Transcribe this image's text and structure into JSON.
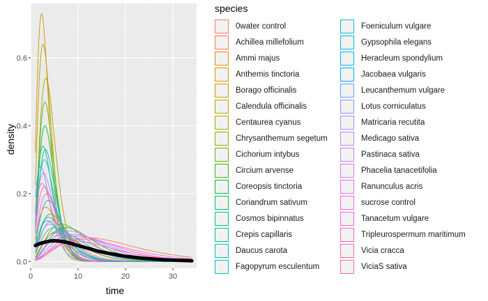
{
  "chart_data": {
    "type": "line",
    "subtype": "density",
    "xlabel": "time",
    "ylabel": "density",
    "xlim": [
      0,
      35
    ],
    "ylim": [
      -0.02,
      0.76
    ],
    "x_ticks": [
      "0",
      "10",
      "20",
      "30"
    ],
    "x_tick_values": [
      0,
      10,
      20,
      30
    ],
    "y_ticks": [
      "0.0",
      "0.2",
      "0.4",
      "0.6"
    ],
    "y_tick_values": [
      0,
      0.2,
      0.4,
      0.6
    ],
    "grid": true,
    "panel_background": "#ebebeb",
    "legend": {
      "title": "species",
      "position": "right",
      "columns": 2,
      "entries": [
        {
          "name": "0water control",
          "color": "#F8766D"
        },
        {
          "name": "Achillea millefolium",
          "color": "#F07F4F"
        },
        {
          "name": "Ammi majus",
          "color": "#E58700"
        },
        {
          "name": "Anthemis tinctoria",
          "color": "#D89000"
        },
        {
          "name": "Borago officinalis",
          "color": "#C99800"
        },
        {
          "name": "Calendula officinalis",
          "color": "#B79F00"
        },
        {
          "name": "Centaurea cyanus",
          "color": "#A3A500"
        },
        {
          "name": "Chrysanthemum segetum",
          "color": "#8BAB00"
        },
        {
          "name": "Cichorium intybus",
          "color": "#6BB100"
        },
        {
          "name": "Circium arvense",
          "color": "#39B600"
        },
        {
          "name": "Coreopsis tinctoria",
          "color": "#00BA38"
        },
        {
          "name": "Coriandrum sativum",
          "color": "#00BD5C"
        },
        {
          "name": "Cosmos bipinnatus",
          "color": "#00BF7D"
        },
        {
          "name": "Crepis capillaris",
          "color": "#00C19A"
        },
        {
          "name": "Daucus carota",
          "color": "#00C1B2"
        },
        {
          "name": "Fagopyrum esculentum",
          "color": "#00BFC4"
        },
        {
          "name": "Foeniculum vulgare",
          "color": "#00BBD9"
        },
        {
          "name": "Gypsophila elegans",
          "color": "#00B5E8"
        },
        {
          "name": "Heracleum spondylium",
          "color": "#00ADF4"
        },
        {
          "name": "Jacobaea vulgaris",
          "color": "#00A5FF"
        },
        {
          "name": "Leucanthemum vulgare",
          "color": "#619CFF"
        },
        {
          "name": "Lotus corniculatus",
          "color": "#8B93FF"
        },
        {
          "name": "Matricaria recutita",
          "color": "#A58AFF"
        },
        {
          "name": "Medicago sativa",
          "color": "#BA81FF"
        },
        {
          "name": "Pastinaca sativa",
          "color": "#C77CFF"
        },
        {
          "name": "Phacelia tanacetifolia",
          "color": "#D877F2"
        },
        {
          "name": "Ranunculus acris",
          "color": "#E76BF3"
        },
        {
          "name": "sucrose control",
          "color": "#F365E6"
        },
        {
          "name": "Tanacetum vulgare",
          "color": "#FB61D7"
        },
        {
          "name": "Tripleurospermum maritimum",
          "color": "#FF62BC"
        },
        {
          "name": "Vicia cracca",
          "color": "#FF65AE"
        },
        {
          "name": "ViciaS sativa",
          "color": "#FF6C91"
        }
      ]
    },
    "series": [
      {
        "color": "#C99800",
        "peak_x": 2.3,
        "peak_y": 0.73,
        "spread": 0.8
      },
      {
        "color": "#B79F00",
        "peak_x": 2.6,
        "peak_y": 0.64,
        "spread": 0.9
      },
      {
        "color": "#A3A500",
        "peak_x": 3.2,
        "peak_y": 0.54,
        "spread": 1.0
      },
      {
        "color": "#6BB100",
        "peak_x": 3.0,
        "peak_y": 0.47,
        "spread": 0.9
      },
      {
        "color": "#00BA38",
        "peak_x": 3.0,
        "peak_y": 0.4,
        "spread": 1.0
      },
      {
        "color": "#00BF7D",
        "peak_x": 2.6,
        "peak_y": 0.34,
        "spread": 1.1
      },
      {
        "color": "#00C19A",
        "peak_x": 3.1,
        "peak_y": 0.33,
        "spread": 1.1
      },
      {
        "color": "#00BFC4",
        "peak_x": 2.9,
        "peak_y": 0.3,
        "spread": 1.2
      },
      {
        "color": "#619CFF",
        "peak_x": 2.1,
        "peak_y": 0.28,
        "spread": 1.3
      },
      {
        "color": "#C77CFF",
        "peak_x": 2.7,
        "peak_y": 0.26,
        "spread": 1.4
      },
      {
        "color": "#F8766D",
        "peak_x": 2.4,
        "peak_y": 0.23,
        "spread": 1.5
      },
      {
        "color": "#F365E6",
        "peak_x": 2.9,
        "peak_y": 0.22,
        "spread": 1.5
      },
      {
        "color": "#FF62BC",
        "peak_x": 3.4,
        "peak_y": 0.2,
        "spread": 1.7
      },
      {
        "color": "#00A5FF",
        "peak_x": 3.7,
        "peak_y": 0.18,
        "spread": 1.8
      },
      {
        "color": "#E58700",
        "peak_x": 3.2,
        "peak_y": 0.16,
        "spread": 1.9
      },
      {
        "color": "#39B600",
        "peak_x": 4.2,
        "peak_y": 0.14,
        "spread": 2.0
      },
      {
        "color": "#00ADF4",
        "peak_x": 3.8,
        "peak_y": 0.13,
        "spread": 2.2
      },
      {
        "color": "#FF6C91",
        "peak_x": 4.5,
        "peak_y": 0.12,
        "spread": 2.3
      },
      {
        "color": "#8BAB00",
        "peak_x": 6.5,
        "peak_y": 0.11,
        "spread": 3.0
      },
      {
        "color": "#00BD5C",
        "peak_x": 7.5,
        "peak_y": 0.1,
        "spread": 3.2
      },
      {
        "color": "#00C1B2",
        "peak_x": 5.0,
        "peak_y": 0.1,
        "spread": 3.0
      },
      {
        "color": "#D877F2",
        "peak_x": 8.0,
        "peak_y": 0.09,
        "spread": 3.8
      },
      {
        "color": "#A58AFF",
        "peak_x": 9.0,
        "peak_y": 0.08,
        "spread": 4.2
      },
      {
        "color": "#FB61D7",
        "peak_x": 10.0,
        "peak_y": 0.075,
        "spread": 4.5
      },
      {
        "color": "#F07F4F",
        "peak_x": 12.0,
        "peak_y": 0.07,
        "spread": 6.0
      },
      {
        "color": "#E76BF3",
        "peak_x": 11.0,
        "peak_y": 0.065,
        "spread": 5.5
      },
      {
        "color": "#00B5E8",
        "peak_x": 6.0,
        "peak_y": 0.09,
        "spread": 3.2
      },
      {
        "color": "#D89000",
        "peak_x": 5.5,
        "peak_y": 0.085,
        "spread": 3.0
      },
      {
        "color": "#BA81FF",
        "peak_x": 7.0,
        "peak_y": 0.08,
        "spread": 3.6
      },
      {
        "color": "#8B93FF",
        "peak_x": 4.0,
        "peak_y": 0.11,
        "spread": 2.1
      },
      {
        "color": "#00BBD9",
        "peak_x": 3.5,
        "peak_y": 0.12,
        "spread": 2.0
      },
      {
        "color": "#FF65AE",
        "peak_x": 9.5,
        "peak_y": 0.06,
        "spread": 5.0
      }
    ],
    "overall_density": {
      "color": "#000000",
      "x": [
        1,
        2,
        3,
        4,
        5,
        6,
        7,
        8,
        9,
        10,
        12,
        14,
        16,
        18,
        20,
        22,
        24,
        26,
        28,
        30,
        32,
        34
      ],
      "y": [
        0.047,
        0.053,
        0.057,
        0.06,
        0.061,
        0.06,
        0.058,
        0.055,
        0.051,
        0.047,
        0.039,
        0.031,
        0.025,
        0.02,
        0.015,
        0.012,
        0.009,
        0.007,
        0.005,
        0.004,
        0.003,
        0.002
      ]
    }
  }
}
